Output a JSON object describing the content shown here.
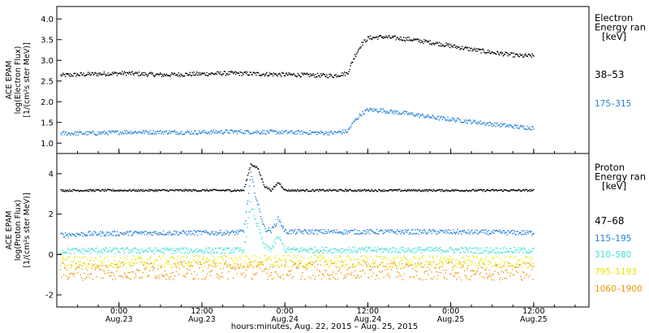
{
  "colors": {
    "black": "#000000",
    "blue": "#1f7fd6",
    "cyan": "#40e0d0",
    "yellow": "#e8e800",
    "orange": "#f0960a",
    "frame": "#000000"
  },
  "xlabel": "hours:minutes, Aug. 22, 2015 – Aug. 25, 2015",
  "x_ticks": [
    {
      "time": "0:00",
      "date": "Aug.23",
      "hours": 24
    },
    {
      "time": "12:00",
      "date": "Aug.23",
      "hours": 36
    },
    {
      "time": "0:00",
      "date": "Aug.24",
      "hours": 48
    },
    {
      "time": "12:00",
      "date": "Aug.24",
      "hours": 60
    },
    {
      "time": "0:00",
      "date": "Aug.25",
      "hours": 72
    },
    {
      "time": "12:00",
      "date": "Aug.25",
      "hours": 84
    }
  ],
  "chart_data": [
    {
      "type": "scatter",
      "panel": "top",
      "ylabel_lines": [
        "ACE EPAM",
        "log(Electron Flux)",
        "[1/(cm²s ster MeV)]"
      ],
      "legend_title": [
        "Electron",
        "Energy ran",
        "[keV]"
      ],
      "xlim_hours": [
        15,
        92
      ],
      "ylim": [
        0.75,
        4.3
      ],
      "y_ticks": [
        "1.0",
        "1.5",
        "2.0",
        "2.5",
        "3.0",
        "3.5",
        "4.0"
      ],
      "series": [
        {
          "name": "38–53",
          "color_key": "black",
          "x_hours": [
            15.5,
            20,
            25,
            30,
            35,
            40,
            45,
            50,
            55,
            57,
            58,
            59,
            60,
            62,
            66,
            70,
            74,
            78,
            82,
            84
          ],
          "values": [
            2.65,
            2.68,
            2.7,
            2.66,
            2.68,
            2.7,
            2.68,
            2.66,
            2.64,
            2.7,
            3.1,
            3.4,
            3.55,
            3.58,
            3.52,
            3.42,
            3.3,
            3.2,
            3.12,
            3.12
          ],
          "spread": 0.05
        },
        {
          "name": "175–315",
          "color_key": "blue",
          "x_hours": [
            15.5,
            20,
            25,
            30,
            35,
            40,
            45,
            50,
            55,
            57,
            58,
            59,
            60,
            62,
            66,
            70,
            74,
            78,
            82,
            84
          ],
          "values": [
            1.25,
            1.25,
            1.28,
            1.28,
            1.27,
            1.29,
            1.28,
            1.27,
            1.26,
            1.3,
            1.55,
            1.72,
            1.82,
            1.8,
            1.72,
            1.62,
            1.55,
            1.47,
            1.4,
            1.38
          ],
          "spread": 0.05
        }
      ]
    },
    {
      "type": "scatter",
      "panel": "bottom",
      "ylabel_lines": [
        "ACE EPAM",
        "log(Proton Flux)",
        "[1/(cm²s ster MeV)]"
      ],
      "legend_title": [
        "Proton",
        "Energy ran",
        "[keV]"
      ],
      "xlim_hours": [
        15,
        92
      ],
      "ylim": [
        -2.6,
        5.0
      ],
      "y_ticks": [
        "-2",
        "0",
        "2",
        "4"
      ],
      "series": [
        {
          "name": "47–68",
          "color_key": "black",
          "x_hours": [
            15.5,
            20,
            30,
            40,
            42,
            43,
            44,
            45,
            46,
            47,
            48,
            50,
            60,
            70,
            84
          ],
          "values": [
            3.2,
            3.2,
            3.2,
            3.2,
            3.2,
            4.5,
            4.3,
            3.4,
            3.2,
            3.6,
            3.2,
            3.2,
            3.2,
            3.2,
            3.2
          ],
          "spread": 0.05
        },
        {
          "name": "115–195",
          "color_key": "blue",
          "x_hours": [
            15.5,
            20,
            30,
            40,
            42,
            43,
            44,
            45,
            46,
            47,
            48,
            50,
            60,
            70,
            84
          ],
          "values": [
            1.0,
            1.05,
            1.1,
            1.1,
            1.15,
            4.0,
            2.5,
            1.3,
            1.2,
            1.8,
            1.15,
            1.15,
            1.15,
            1.15,
            1.1
          ],
          "spread": 0.12
        },
        {
          "name": "310–580",
          "color_key": "cyan",
          "x_hours": [
            15.5,
            20,
            30,
            40,
            42,
            43,
            44,
            45,
            46,
            47,
            48,
            50,
            60,
            70,
            84
          ],
          "values": [
            0.2,
            0.22,
            0.22,
            0.22,
            0.25,
            2.5,
            1.4,
            0.4,
            0.3,
            0.9,
            0.25,
            0.25,
            0.25,
            0.25,
            0.22
          ],
          "spread": 0.15
        },
        {
          "name": "795–1193",
          "color_key": "yellow",
          "x_hours": [
            15.5,
            40,
            84
          ],
          "values": [
            -0.35,
            -0.3,
            -0.35
          ],
          "spread": 0.3
        },
        {
          "name": "1060–1900",
          "color_key": "orange",
          "x_hours": [
            15.5,
            40,
            84
          ],
          "values": [
            -0.8,
            -0.75,
            -0.8
          ],
          "spread": 0.45
        }
      ]
    }
  ]
}
